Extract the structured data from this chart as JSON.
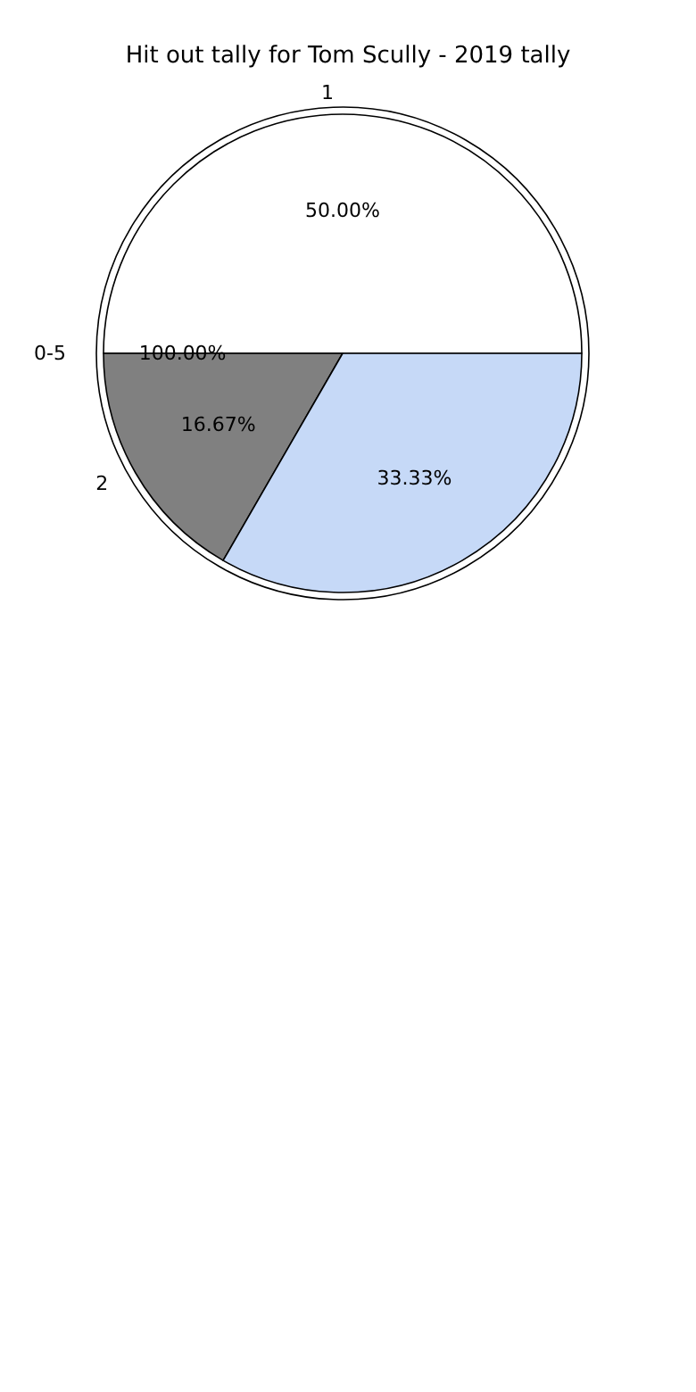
{
  "chart_data": [
    {
      "type": "pie",
      "title": "Hit out tally for Tom Scully - 2019 tally",
      "categories": [
        "0-5"
      ],
      "values": [
        100
      ],
      "colors": [
        "#ffffff"
      ],
      "value_labels": [
        "100.00%"
      ]
    },
    {
      "type": "pie",
      "categories": [
        "1",
        "2",
        null
      ],
      "values": [
        50,
        16.67,
        33.33
      ],
      "colors": [
        "#ffffff",
        "#808080",
        "#c6d9f7"
      ],
      "value_labels": [
        "50.00%",
        "16.67%",
        "33.33%"
      ]
    }
  ]
}
